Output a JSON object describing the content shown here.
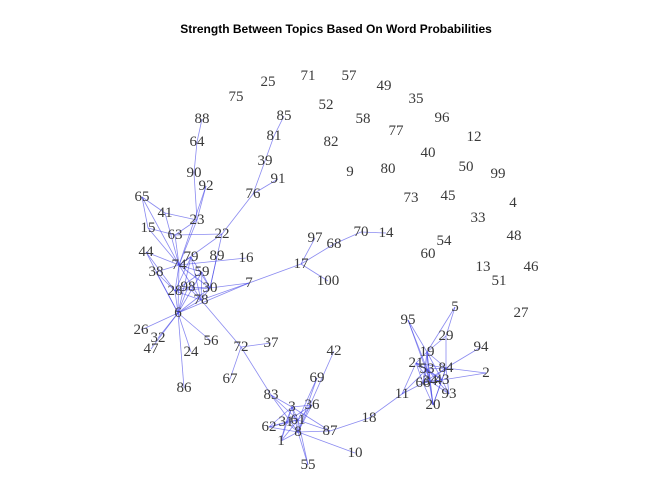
{
  "title": "Strength Between Topics Based On Word Probabilities",
  "colors": {
    "edge": "#3c3ce6",
    "label": "#3a3a3a",
    "background": "#ffffff"
  },
  "nodes": [
    "1",
    "2",
    "3",
    "4",
    "5",
    "6",
    "7",
    "8",
    "9",
    "10",
    "11",
    "12",
    "13",
    "14",
    "15",
    "16",
    "17",
    "18",
    "19",
    "20",
    "21",
    "22",
    "23",
    "24",
    "25",
    "26",
    "27",
    "28",
    "29",
    "30",
    "31",
    "32",
    "33",
    "34",
    "35",
    "36",
    "37",
    "38",
    "39",
    "40",
    "41",
    "42",
    "43",
    "44",
    "45",
    "46",
    "47",
    "48",
    "49",
    "50",
    "51",
    "52",
    "53",
    "54",
    "55",
    "56",
    "57",
    "58",
    "59",
    "60",
    "61",
    "62",
    "63",
    "64",
    "65",
    "66",
    "67",
    "68",
    "69",
    "70",
    "71",
    "72",
    "73",
    "74",
    "75",
    "76",
    "77",
    "78",
    "79",
    "80",
    "81",
    "82",
    "83",
    "84",
    "85",
    "86",
    "87",
    "88",
    "89",
    "90",
    "91",
    "92",
    "93",
    "94",
    "95",
    "96",
    "97",
    "98",
    "99",
    "100"
  ],
  "edges": [
    [
      "6",
      "26"
    ],
    [
      "6",
      "32"
    ],
    [
      "6",
      "47"
    ],
    [
      "6",
      "28"
    ],
    [
      "6",
      "78"
    ],
    [
      "6",
      "30"
    ],
    [
      "6",
      "98"
    ],
    [
      "6",
      "74"
    ],
    [
      "6",
      "44"
    ],
    [
      "6",
      "38"
    ],
    [
      "6",
      "59"
    ],
    [
      "6",
      "56"
    ],
    [
      "6",
      "24"
    ],
    [
      "6",
      "86"
    ],
    [
      "6",
      "79"
    ],
    [
      "6",
      "7"
    ],
    [
      "28",
      "78"
    ],
    [
      "28",
      "30"
    ],
    [
      "28",
      "98"
    ],
    [
      "28",
      "74"
    ],
    [
      "28",
      "38"
    ],
    [
      "28",
      "44"
    ],
    [
      "28",
      "79"
    ],
    [
      "28",
      "59"
    ],
    [
      "78",
      "30"
    ],
    [
      "78",
      "98"
    ],
    [
      "78",
      "74"
    ],
    [
      "78",
      "59"
    ],
    [
      "78",
      "79"
    ],
    [
      "78",
      "7"
    ],
    [
      "78",
      "72"
    ],
    [
      "30",
      "98"
    ],
    [
      "30",
      "74"
    ],
    [
      "30",
      "59"
    ],
    [
      "30",
      "79"
    ],
    [
      "30",
      "22"
    ],
    [
      "30",
      "89"
    ],
    [
      "30",
      "7"
    ],
    [
      "74",
      "63"
    ],
    [
      "74",
      "15"
    ],
    [
      "74",
      "65"
    ],
    [
      "74",
      "41"
    ],
    [
      "74",
      "44"
    ],
    [
      "74",
      "38"
    ],
    [
      "74",
      "59"
    ],
    [
      "74",
      "79"
    ],
    [
      "74",
      "23"
    ],
    [
      "74",
      "92"
    ],
    [
      "74",
      "22"
    ],
    [
      "74",
      "16"
    ],
    [
      "63",
      "15"
    ],
    [
      "63",
      "23"
    ],
    [
      "63",
      "22"
    ],
    [
      "15",
      "65"
    ],
    [
      "65",
      "41"
    ],
    [
      "41",
      "23"
    ],
    [
      "23",
      "90"
    ],
    [
      "23",
      "92"
    ],
    [
      "90",
      "64"
    ],
    [
      "64",
      "88"
    ],
    [
      "22",
      "76"
    ],
    [
      "76",
      "39"
    ],
    [
      "76",
      "91"
    ],
    [
      "39",
      "81"
    ],
    [
      "81",
      "85"
    ],
    [
      "7",
      "17"
    ],
    [
      "17",
      "97"
    ],
    [
      "17",
      "68"
    ],
    [
      "17",
      "100"
    ],
    [
      "68",
      "70"
    ],
    [
      "70",
      "14"
    ],
    [
      "72",
      "37"
    ],
    [
      "72",
      "67"
    ],
    [
      "72",
      "83"
    ],
    [
      "83",
      "3"
    ],
    [
      "83",
      "61"
    ],
    [
      "83",
      "8"
    ],
    [
      "3",
      "36"
    ],
    [
      "3",
      "61"
    ],
    [
      "3",
      "31"
    ],
    [
      "3",
      "8"
    ],
    [
      "3",
      "62"
    ],
    [
      "3",
      "1"
    ],
    [
      "3",
      "87"
    ],
    [
      "61",
      "36"
    ],
    [
      "61",
      "8"
    ],
    [
      "61",
      "31"
    ],
    [
      "61",
      "62"
    ],
    [
      "61",
      "1"
    ],
    [
      "61",
      "87"
    ],
    [
      "61",
      "55"
    ],
    [
      "61",
      "69"
    ],
    [
      "8",
      "31"
    ],
    [
      "8",
      "1"
    ],
    [
      "8",
      "62"
    ],
    [
      "8",
      "87"
    ],
    [
      "8",
      "36"
    ],
    [
      "8",
      "55"
    ],
    [
      "8",
      "10"
    ],
    [
      "8",
      "69"
    ],
    [
      "8",
      "42"
    ],
    [
      "31",
      "62"
    ],
    [
      "31",
      "1"
    ],
    [
      "31",
      "36"
    ],
    [
      "87",
      "18"
    ],
    [
      "18",
      "11"
    ],
    [
      "11",
      "21"
    ],
    [
      "11",
      "53"
    ],
    [
      "11",
      "66"
    ],
    [
      "19",
      "21"
    ],
    [
      "19",
      "53"
    ],
    [
      "19",
      "84"
    ],
    [
      "19",
      "43"
    ],
    [
      "19",
      "34"
    ],
    [
      "19",
      "66"
    ],
    [
      "19",
      "95"
    ],
    [
      "19",
      "29"
    ],
    [
      "19",
      "5"
    ],
    [
      "19",
      "20"
    ],
    [
      "53",
      "84"
    ],
    [
      "53",
      "43"
    ],
    [
      "53",
      "34"
    ],
    [
      "53",
      "66"
    ],
    [
      "53",
      "21"
    ],
    [
      "53",
      "20"
    ],
    [
      "53",
      "93"
    ],
    [
      "84",
      "43"
    ],
    [
      "84",
      "34"
    ],
    [
      "84",
      "94"
    ],
    [
      "84",
      "2"
    ],
    [
      "84",
      "66"
    ],
    [
      "84",
      "21"
    ],
    [
      "84",
      "93"
    ],
    [
      "84",
      "20"
    ],
    [
      "84",
      "29"
    ],
    [
      "43",
      "34"
    ],
    [
      "43",
      "66"
    ],
    [
      "43",
      "2"
    ],
    [
      "43",
      "93"
    ],
    [
      "43",
      "20"
    ],
    [
      "43",
      "21"
    ],
    [
      "34",
      "66"
    ],
    [
      "34",
      "21"
    ],
    [
      "34",
      "20"
    ],
    [
      "34",
      "93"
    ],
    [
      "34",
      "95"
    ],
    [
      "66",
      "21"
    ],
    [
      "66",
      "20"
    ],
    [
      "29",
      "5"
    ],
    [
      "95",
      "53"
    ]
  ]
}
